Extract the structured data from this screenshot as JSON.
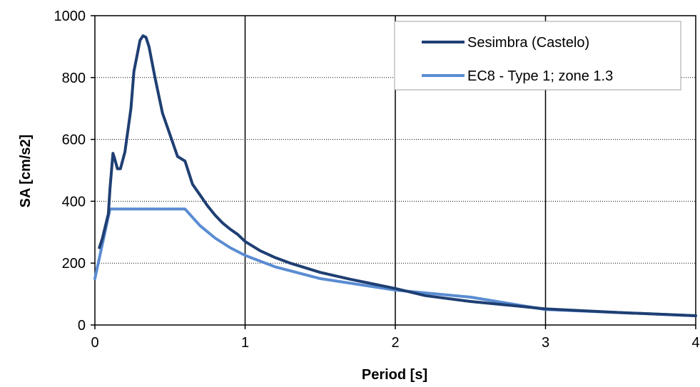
{
  "chart_data": {
    "type": "line",
    "xlabel": "Period [s]",
    "ylabel": "SA [cm/s2]",
    "xlim": [
      0,
      4
    ],
    "ylim": [
      0,
      1000
    ],
    "x_ticks": [
      "0",
      "1",
      "2",
      "3",
      "4"
    ],
    "y_ticks": [
      "0",
      "200",
      "400",
      "600",
      "800",
      "1000"
    ],
    "x_tick_values": [
      0,
      1,
      2,
      3,
      4
    ],
    "y_tick_values": [
      0,
      200,
      400,
      600,
      800,
      1000
    ],
    "grid": {
      "x": "solid",
      "y": "dotted"
    },
    "legend_position": "top-right",
    "series": [
      {
        "name": "Sesimbra (Castelo)",
        "color": "#1f3f73",
        "x": [
          0.03,
          0.05,
          0.07,
          0.09,
          0.1,
          0.12,
          0.13,
          0.15,
          0.17,
          0.2,
          0.22,
          0.24,
          0.26,
          0.3,
          0.32,
          0.34,
          0.36,
          0.4,
          0.45,
          0.5,
          0.55,
          0.6,
          0.65,
          0.7,
          0.75,
          0.8,
          0.85,
          0.9,
          0.95,
          1.0,
          1.1,
          1.2,
          1.3,
          1.4,
          1.5,
          1.7,
          2.0,
          2.2,
          2.5,
          2.8,
          3.0,
          3.5,
          4.0
        ],
        "y": [
          250,
          280,
          320,
          360,
          440,
          555,
          540,
          505,
          505,
          560,
          630,
          700,
          820,
          920,
          935,
          930,
          900,
          800,
          685,
          615,
          545,
          530,
          455,
          420,
          385,
          355,
          330,
          310,
          293,
          270,
          240,
          218,
          200,
          185,
          170,
          148,
          118,
          95,
          76,
          62,
          52,
          40,
          30
        ]
      },
      {
        "name": "EC8 - Type 1; zone 1.3",
        "color": "#5a8cd2",
        "x": [
          0,
          0.05,
          0.1,
          0.2,
          0.4,
          0.6,
          0.7,
          0.8,
          0.9,
          1.0,
          1.2,
          1.5,
          2.0,
          2.5,
          3.0,
          3.5,
          4.0
        ],
        "y": [
          150,
          262,
          375,
          375,
          375,
          375,
          321,
          281,
          250,
          225,
          188,
          150,
          113,
          90,
          50,
          40,
          30
        ]
      }
    ]
  }
}
